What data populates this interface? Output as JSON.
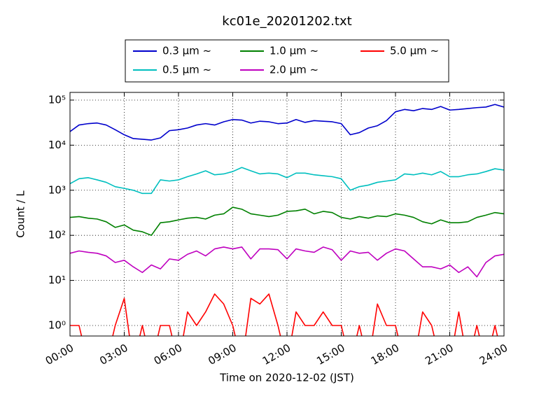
{
  "chart_data": {
    "type": "line",
    "title": "kc01e_20201202.txt",
    "xlabel": "Time on 2020-12-02 (JST)",
    "ylabel": "Count / L",
    "log_y": true,
    "grid": true,
    "legend": "upper center",
    "xlim": [
      0,
      24
    ],
    "ylim": [
      0.585,
      148000
    ],
    "xticks": [
      {
        "value": 0,
        "label": "00:00"
      },
      {
        "value": 3,
        "label": "03:00"
      },
      {
        "value": 6,
        "label": "06:00"
      },
      {
        "value": 9,
        "label": "09:00"
      },
      {
        "value": 12,
        "label": "12:00"
      },
      {
        "value": 15,
        "label": "15:00"
      },
      {
        "value": 18,
        "label": "18:00"
      },
      {
        "value": 21,
        "label": "21:00"
      },
      {
        "value": 24,
        "label": "24:00"
      }
    ],
    "yticks": [
      {
        "value": 1,
        "label": "10⁰"
      },
      {
        "value": 10,
        "label": "10¹"
      },
      {
        "value": 100,
        "label": "10²"
      },
      {
        "value": 1000,
        "label": "10³"
      },
      {
        "value": 10000,
        "label": "10⁴"
      },
      {
        "value": 100000,
        "label": "10⁵"
      }
    ],
    "x": [
      0,
      0.5,
      1,
      1.5,
      2,
      2.5,
      3,
      3.5,
      4,
      4.5,
      5,
      5.5,
      6,
      6.5,
      7,
      7.5,
      8,
      8.5,
      9,
      9.5,
      10,
      10.5,
      11,
      11.5,
      12,
      12.5,
      13,
      13.5,
      14,
      14.5,
      15,
      15.5,
      16,
      16.5,
      17,
      17.5,
      18,
      18.5,
      19,
      19.5,
      20,
      20.5,
      21,
      21.5,
      22,
      22.5,
      23,
      23.5,
      24
    ],
    "series": [
      {
        "name": "0.3 μm ~",
        "color": "#0000cc",
        "values": [
          20000,
          28000,
          30000,
          31000,
          28000,
          22000,
          17000,
          14000,
          13500,
          13000,
          14500,
          21000,
          22000,
          24000,
          28000,
          30000,
          28000,
          33000,
          37000,
          36000,
          31000,
          34000,
          33000,
          30000,
          31000,
          37000,
          32000,
          35000,
          34000,
          33000,
          30000,
          17000,
          19000,
          24000,
          27000,
          35000,
          55000,
          62000,
          58000,
          65000,
          62000,
          72000,
          60000,
          62000,
          65000,
          68000,
          70000,
          80000,
          70000
        ]
      },
      {
        "name": "0.5 μm ~",
        "color": "#00bfbf",
        "values": [
          1400,
          1800,
          1900,
          1700,
          1500,
          1200,
          1100,
          1000,
          850,
          850,
          1700,
          1600,
          1700,
          2000,
          2300,
          2700,
          2200,
          2300,
          2600,
          3200,
          2700,
          2300,
          2400,
          2300,
          1900,
          2400,
          2400,
          2200,
          2100,
          2000,
          1800,
          1000,
          1200,
          1300,
          1500,
          1600,
          1700,
          2300,
          2200,
          2400,
          2200,
          2600,
          2000,
          2000,
          2200,
          2300,
          2600,
          3000,
          2800
        ]
      },
      {
        "name": "1.0 μm ~",
        "color": "#008000",
        "values": [
          250,
          260,
          240,
          230,
          200,
          150,
          170,
          130,
          120,
          100,
          190,
          200,
          220,
          240,
          250,
          230,
          280,
          300,
          420,
          380,
          300,
          280,
          260,
          280,
          340,
          350,
          380,
          300,
          340,
          320,
          250,
          230,
          260,
          240,
          270,
          260,
          300,
          280,
          250,
          200,
          180,
          220,
          190,
          190,
          200,
          250,
          280,
          320,
          300
        ]
      },
      {
        "name": "2.0 μm ~",
        "color": "#bf00bf",
        "values": [
          40,
          45,
          42,
          40,
          35,
          25,
          28,
          20,
          15,
          22,
          18,
          30,
          28,
          38,
          45,
          35,
          50,
          55,
          50,
          55,
          30,
          50,
          50,
          48,
          30,
          50,
          45,
          42,
          55,
          48,
          28,
          45,
          40,
          42,
          28,
          40,
          50,
          45,
          30,
          20,
          20,
          18,
          22,
          15,
          20,
          12,
          25,
          35,
          38
        ]
      },
      {
        "name": "5.0 μm ~",
        "color": "#ff0000",
        "values": [
          1,
          1,
          0,
          0,
          0,
          1,
          4,
          0,
          1,
          0,
          1,
          1,
          0,
          2,
          1,
          2,
          5,
          3,
          1,
          0,
          4,
          3,
          5,
          1,
          0,
          2,
          1,
          1,
          2,
          1,
          1,
          0,
          1,
          0,
          3,
          1,
          1,
          0,
          0,
          2,
          1,
          0,
          0,
          2,
          0,
          1,
          0,
          1,
          0
        ]
      }
    ]
  }
}
